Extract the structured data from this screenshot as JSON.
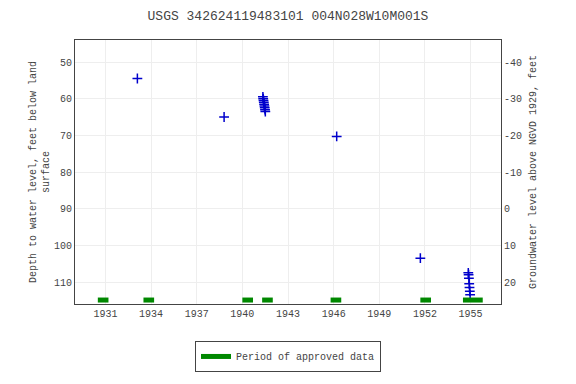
{
  "chart_data": {
    "type": "scatter",
    "title": "USGS 342624119483101 004N028W10M001S",
    "y_label": "Depth to water level, feet below land\nsurface",
    "y2_label": "Groundwater level above NGVD 1929, feet",
    "xlim": [
      1929,
      1957
    ],
    "xticks": [
      1931,
      1934,
      1937,
      1940,
      1943,
      1946,
      1949,
      1952,
      1955
    ],
    "ylim": [
      116,
      44
    ],
    "yticks": [
      50,
      60,
      70,
      80,
      90,
      100,
      110
    ],
    "y2lim": [
      26,
      -46
    ],
    "y2ticks": [
      20,
      10,
      0,
      -10,
      -20,
      -30,
      -40
    ],
    "grid": true,
    "legend": "bottom",
    "series": [
      {
        "type": "scatter",
        "marker": "cross",
        "color": "#0000cc",
        "x": [
          1933.1,
          1938.8,
          1941.35,
          1941.37,
          1941.39,
          1941.41,
          1941.43,
          1941.45,
          1941.47,
          1941.49,
          1941.51,
          1946.2,
          1951.7,
          1954.85,
          1954.87,
          1954.89,
          1954.91,
          1954.93,
          1954.95,
          1954.97
        ],
        "values": [
          54.5,
          65.0,
          59.5,
          60.0,
          60.5,
          61.0,
          61.5,
          62.0,
          62.5,
          63.0,
          63.5,
          70.3,
          103.5,
          107.5,
          108.0,
          109.0,
          110.5,
          111.5,
          112.5,
          113.5
        ]
      },
      {
        "type": "span",
        "name": "Period of approved data",
        "color": "#008800",
        "ranges": [
          [
            1930.5,
            1931.2
          ],
          [
            1933.5,
            1934.2
          ],
          [
            1940.0,
            1940.7
          ],
          [
            1941.3,
            1942.0
          ],
          [
            1945.8,
            1946.5
          ],
          [
            1951.7,
            1952.4
          ],
          [
            1954.5,
            1955.8
          ]
        ]
      }
    ]
  }
}
